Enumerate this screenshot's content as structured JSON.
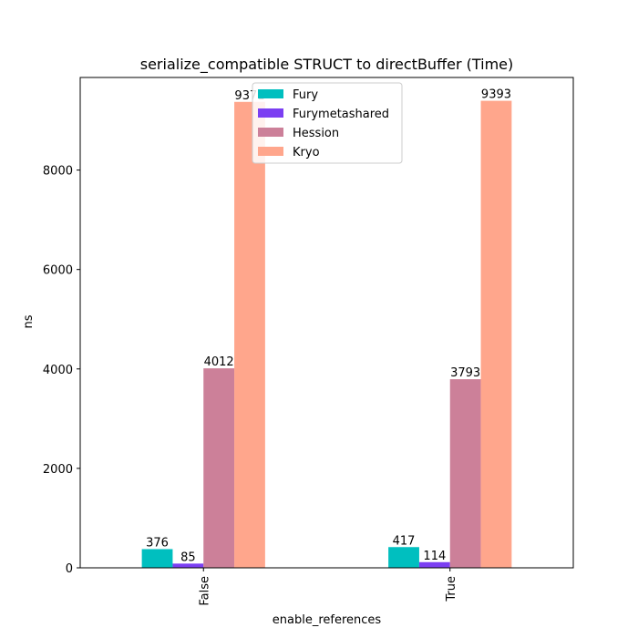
{
  "chart_data": {
    "type": "bar",
    "title": "serialize_compatible STRUCT to directBuffer (Time)",
    "xlabel": "enable_references",
    "ylabel": "ns",
    "categories": [
      "False",
      "True"
    ],
    "ylim": [
      0,
      9862
    ],
    "yticks": [
      0,
      2000,
      4000,
      6000,
      8000
    ],
    "grid": false,
    "legend_position": "top-center",
    "series": [
      {
        "name": "Fury",
        "color": "#00bfbf",
        "values": [
          376,
          417
        ],
        "labels": [
          "376",
          "417"
        ]
      },
      {
        "name": "Furymetashared",
        "color": "#7b3ff2",
        "values": [
          85,
          114
        ],
        "labels": [
          "85",
          "114"
        ]
      },
      {
        "name": "Hession",
        "color": "#cc8099",
        "values": [
          4012,
          3793
        ],
        "labels": [
          "4012",
          "3793"
        ]
      },
      {
        "name": "Kryo",
        "color": "#ffa68c",
        "values": [
          9371,
          9393
        ],
        "labels": [
          "9371",
          "9393"
        ]
      }
    ]
  }
}
